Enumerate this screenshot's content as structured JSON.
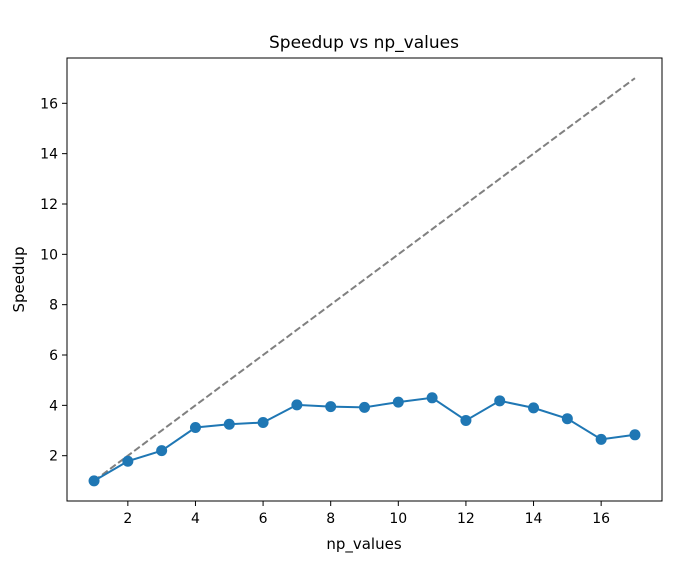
{
  "chart_data": {
    "type": "line",
    "title": "Speedup vs np_values",
    "xlabel": "np_values",
    "ylabel": "Speedup",
    "x": [
      1,
      2,
      3,
      4,
      5,
      6,
      7,
      8,
      9,
      10,
      11,
      12,
      13,
      14,
      15,
      16,
      17
    ],
    "xlim": [
      0.2,
      17.8
    ],
    "ylim": [
      0.2,
      17.8
    ],
    "xticks": [
      2,
      4,
      6,
      8,
      10,
      12,
      14,
      16
    ],
    "yticks": [
      2,
      4,
      6,
      8,
      10,
      12,
      14,
      16
    ],
    "grid": false,
    "legend": "none",
    "series": [
      {
        "style": "solid-markers",
        "color": "#1f77b4",
        "values": [
          1.0,
          1.78,
          2.2,
          3.12,
          3.25,
          3.32,
          4.02,
          3.95,
          3.92,
          4.13,
          4.3,
          3.4,
          4.18,
          3.9,
          3.47,
          2.65,
          2.83
        ]
      },
      {
        "style": "dashed",
        "color": "#808080",
        "values": [
          1,
          2,
          3,
          4,
          5,
          6,
          7,
          8,
          9,
          10,
          11,
          12,
          13,
          14,
          15,
          16,
          17
        ]
      }
    ]
  }
}
